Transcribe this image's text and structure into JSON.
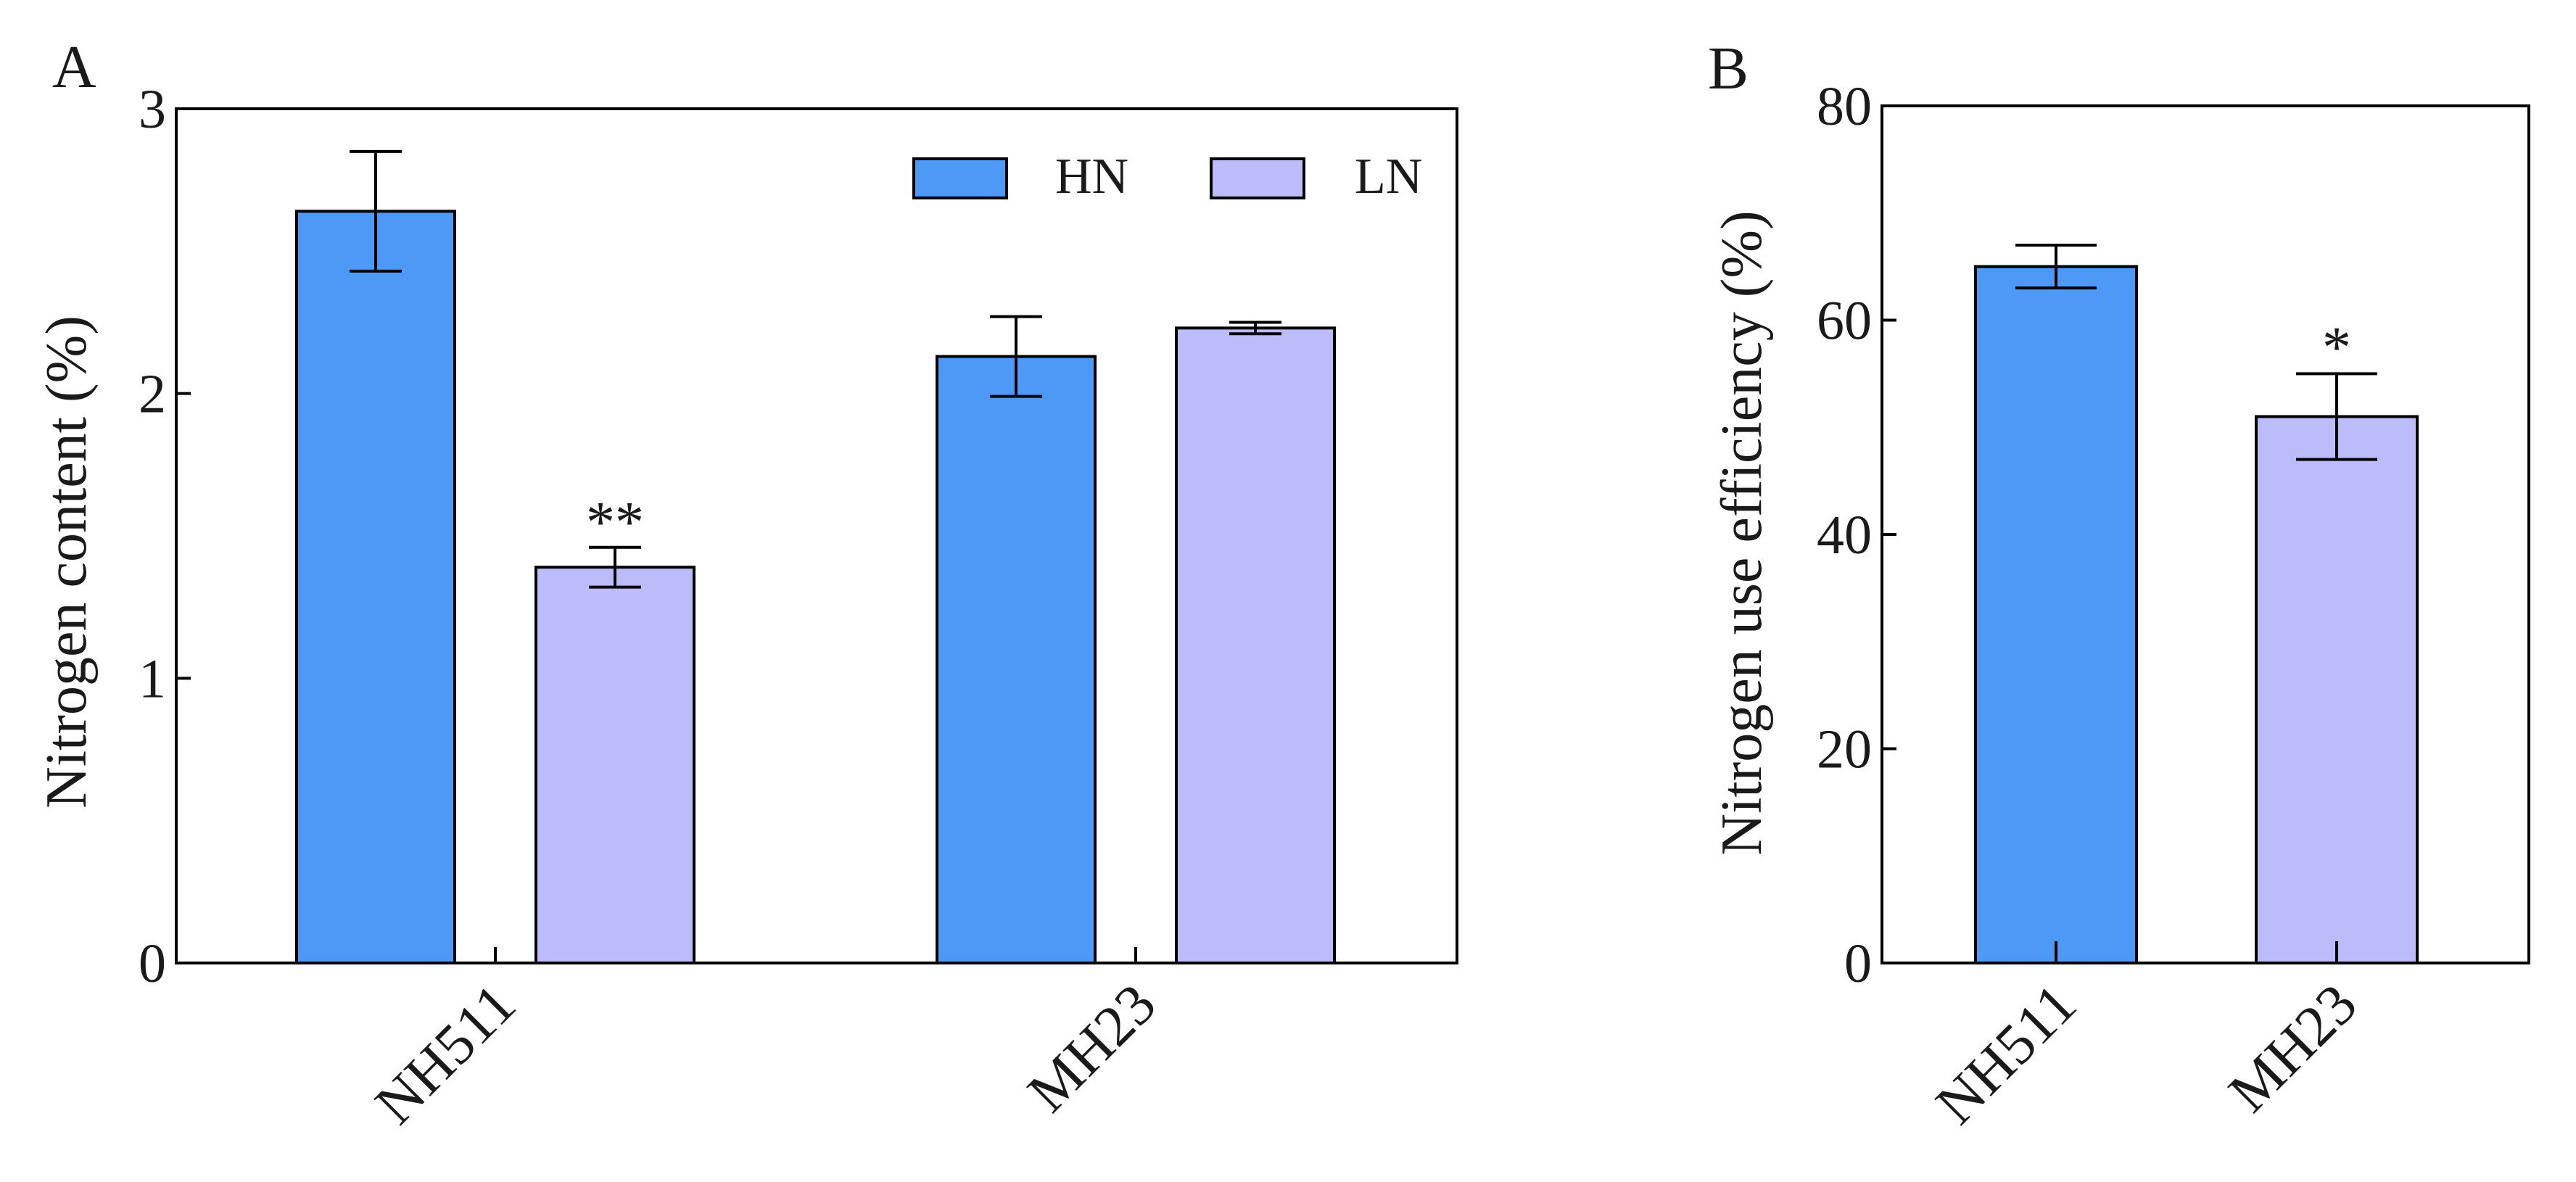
{
  "colors": {
    "HN": "#4f99f6",
    "LN": "#bcbcfb"
  },
  "chart_data": [
    {
      "type": "bar",
      "panel_label": "A",
      "ylabel": "Nitrogen  content (%)",
      "ylim": [
        0,
        3
      ],
      "yticks": [
        0,
        1,
        2,
        3
      ],
      "categories": [
        "NH511",
        "MH23"
      ],
      "legend": {
        "position": "top-right",
        "entries": [
          "HN",
          "LN"
        ]
      },
      "series": [
        {
          "name": "HN",
          "values": [
            2.64,
            2.13
          ],
          "errors": [
            0.21,
            0.14
          ]
        },
        {
          "name": "LN",
          "values": [
            1.39,
            2.23
          ],
          "errors": [
            0.07,
            0.02
          ]
        }
      ],
      "annotations": [
        {
          "series": "LN",
          "category": "NH511",
          "text": "**"
        }
      ],
      "grid": false
    },
    {
      "type": "bar",
      "panel_label": "B",
      "ylabel": "Nitrogen use efficiency (%)",
      "ylim": [
        0,
        80
      ],
      "yticks": [
        0,
        20,
        40,
        60,
        80
      ],
      "categories": [
        "NH511",
        "MH23"
      ],
      "values": [
        65,
        51
      ],
      "errors": [
        2,
        4
      ],
      "bar_colors": [
        "HN",
        "LN"
      ],
      "annotations": [
        {
          "category": "MH23",
          "text": "*"
        }
      ],
      "grid": false
    }
  ]
}
